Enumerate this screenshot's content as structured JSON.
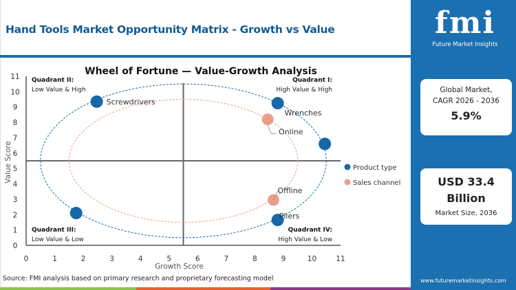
{
  "header": {
    "title": "Hand Tools Market Opportunity Matrix - Growth vs Value"
  },
  "sidebar": {
    "logo_text": "fmi",
    "logo_sub": "Future Market Insights",
    "cagr_label_1": "Global Market,",
    "cagr_label_2": "CAGR 2026 - 2036",
    "cagr_value": "5.9%",
    "size_value_1": "USD 33.4",
    "size_value_2": "Billion",
    "size_label": "Market Size, 2036",
    "url": "www.futuremarketinsights.com",
    "color": "#1a70b0"
  },
  "footer": {
    "source": "Source: FMI analysis based on primary research and proprietary forecasting model",
    "stripe_colors": [
      "#8bc34a",
      "#e8622c",
      "#8e3a8a"
    ]
  },
  "chart_data": {
    "type": "scatter",
    "title": "Wheel of Fortune — Value-Growth Analysis",
    "xlabel": "Growth Score",
    "ylabel": "Value Score",
    "xlim": [
      0,
      11
    ],
    "ylim": [
      0,
      11
    ],
    "xticks": [
      "0",
      "1",
      "2",
      "3",
      "4",
      "5",
      "6",
      "7",
      "8",
      "9",
      "10",
      "11"
    ],
    "yticks": [
      "0",
      "1",
      "2",
      "3",
      "4",
      "5",
      "6",
      "7",
      "8",
      "9",
      "10",
      "11"
    ],
    "quadrant_split": {
      "x": 5.5,
      "y": 5.5
    },
    "quadrants": [
      {
        "title": "Quadrant II:",
        "desc": "Low Value & High",
        "pos": "top-left"
      },
      {
        "title": "Quadrant I:",
        "desc": "High Value & High",
        "pos": "top-right"
      },
      {
        "title": "Quadrant III:",
        "desc": "Low Value & Low",
        "pos": "bottom-left"
      },
      {
        "title": "Quadrant IV:",
        "desc": "High Value & Low",
        "pos": "bottom-right"
      }
    ],
    "legend": {
      "placement": "right"
    },
    "series": [
      {
        "name": "Product type",
        "color": "#1668a8",
        "ellipse": {
          "cx": 5.5,
          "cy": 5.5,
          "rx": 5,
          "ry": 5
        },
        "points": [
          {
            "label": "Screwdrivers",
            "x": 2.47,
            "y": 9.35
          },
          {
            "label": "Wrenches",
            "x": 8.8,
            "y": 9.25
          },
          {
            "label": "",
            "x": 10.45,
            "y": 6.6
          },
          {
            "label": "Pliers",
            "x": 8.8,
            "y": 1.65
          },
          {
            "label": "",
            "x": 1.75,
            "y": 2.1
          }
        ]
      },
      {
        "name": "Sales channel",
        "color": "#e8a08c",
        "ellipse": {
          "cx": 5.5,
          "cy": 5.5,
          "rx": 4,
          "ry": 4
        },
        "points": [
          {
            "label": "Online",
            "x": 8.45,
            "y": 8.2
          },
          {
            "label": "Offline",
            "x": 8.65,
            "y": 2.95
          }
        ]
      }
    ]
  }
}
